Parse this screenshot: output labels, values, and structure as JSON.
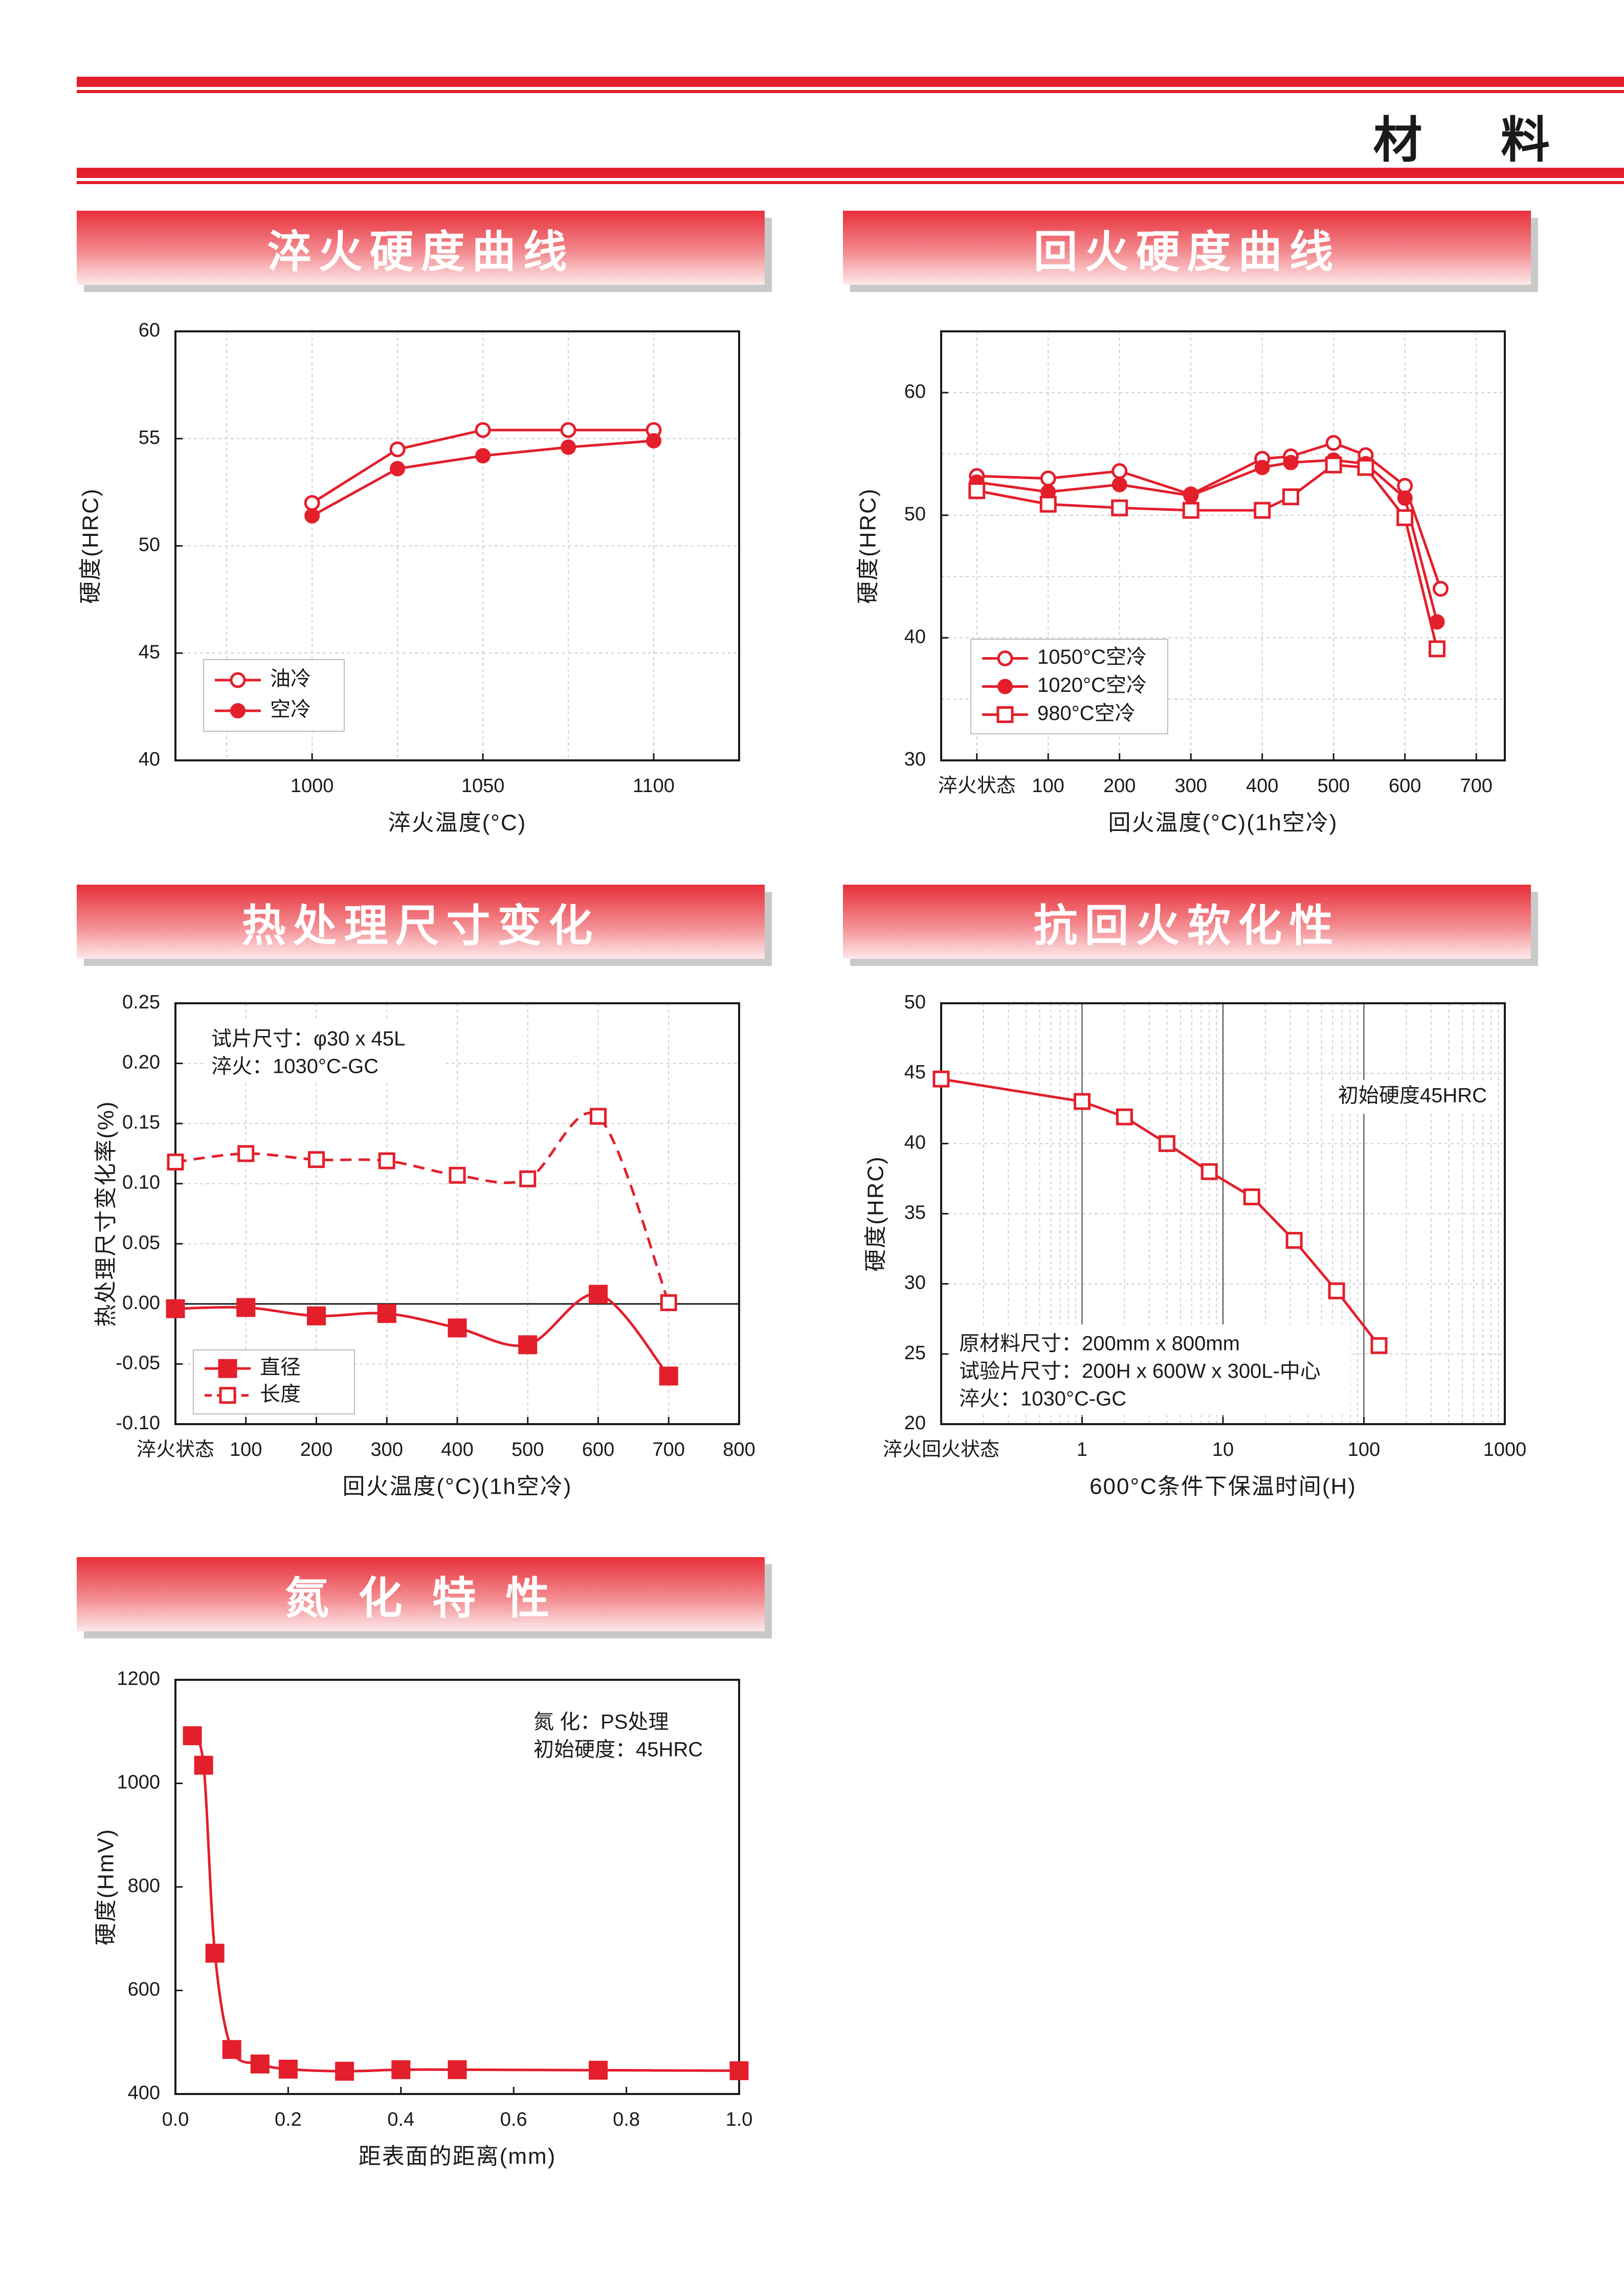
{
  "page": {
    "title": "材 料"
  },
  "sections": {
    "quench": "淬火硬度曲线",
    "temper": "回火硬度曲线",
    "dimension": "热处理尺寸变化",
    "softening": "抗回火软化性",
    "nitriding": "氮 化 特 性"
  },
  "colors": {
    "accent": "#e31f2b",
    "grid": "#cfcfcf",
    "axis": "#1a1a1a"
  },
  "chart_data": [
    {
      "id": "quench",
      "type": "line",
      "title": "淬火硬度曲线",
      "xlabel": "淬火温度(°C)",
      "ylabel": "硬度(HRC)",
      "xlim": [
        960,
        1125
      ],
      "ylim": [
        40,
        60
      ],
      "xticks": [
        1000,
        1050,
        1100
      ],
      "yticks": [
        40,
        45,
        50,
        55,
        60
      ],
      "xgrid": [
        975,
        1000,
        1025,
        1050,
        1075,
        1100,
        1125
      ],
      "ygrid": [
        45,
        50,
        55
      ],
      "legend": {
        "position": "bottom-left"
      },
      "series": [
        {
          "name": "油冷",
          "marker": "open-circle",
          "dash": false,
          "x": [
            1000,
            1025,
            1050,
            1075,
            1100
          ],
          "y": [
            52.0,
            54.5,
            55.4,
            55.4,
            55.4
          ]
        },
        {
          "name": "空冷",
          "marker": "filled-circle",
          "dash": false,
          "x": [
            1000,
            1025,
            1050,
            1075,
            1100
          ],
          "y": [
            51.4,
            53.6,
            54.2,
            54.6,
            54.9
          ]
        }
      ]
    },
    {
      "id": "temper",
      "type": "line",
      "title": "回火硬度曲线",
      "xlabel": "回火温度(°C)(1h空冷)",
      "ylabel": "硬度(HRC)",
      "xlim": [
        -50,
        740
      ],
      "ylim": [
        30,
        65
      ],
      "xticks": [
        0,
        100,
        200,
        300,
        400,
        500,
        600,
        700
      ],
      "xticklabels": [
        "淬火状态",
        "100",
        "200",
        "300",
        "400",
        "500",
        "600",
        "700"
      ],
      "yticks": [
        30,
        40,
        50,
        60
      ],
      "xgrid": [
        0,
        100,
        200,
        300,
        400,
        500,
        600,
        700
      ],
      "ygrid": [
        35,
        40,
        45,
        50,
        55,
        60
      ],
      "legend": {
        "position": "bottom-left"
      },
      "series": [
        {
          "name": "1050°C空冷",
          "marker": "open-circle",
          "dash": false,
          "x": [
            0,
            100,
            200,
            300,
            400,
            440,
            500,
            545,
            600,
            650
          ],
          "y": [
            53.2,
            53.0,
            53.6,
            51.7,
            54.6,
            54.8,
            55.9,
            54.9,
            52.4,
            44.0
          ]
        },
        {
          "name": "1020°C空冷",
          "marker": "filled-circle",
          "dash": false,
          "x": [
            0,
            100,
            200,
            300,
            400,
            440,
            500,
            545,
            600,
            645
          ],
          "y": [
            52.7,
            51.9,
            52.5,
            51.6,
            53.9,
            54.3,
            54.5,
            54.2,
            51.4,
            41.3
          ]
        },
        {
          "name": "980°C空冷",
          "marker": "open-square",
          "dash": false,
          "x": [
            0,
            100,
            200,
            300,
            400,
            440,
            500,
            545,
            600,
            645
          ],
          "y": [
            52.0,
            50.9,
            50.6,
            50.4,
            50.4,
            51.5,
            54.1,
            53.9,
            49.8,
            39.1
          ]
        }
      ]
    },
    {
      "id": "dimension",
      "type": "line",
      "title": "热处理尺寸变化",
      "xlabel": "回火温度(°C)(1h空冷)",
      "ylabel": "热处理尺寸变化率(%)",
      "xlim": [
        0,
        800
      ],
      "ylim": [
        -0.1,
        0.25
      ],
      "xticks": [
        0,
        100,
        200,
        300,
        400,
        500,
        600,
        700,
        800
      ],
      "xticklabels": [
        "淬火状态",
        "100",
        "200",
        "300",
        "400",
        "500",
        "600",
        "700",
        "800"
      ],
      "yticks": [
        -0.1,
        -0.05,
        0.0,
        0.05,
        0.1,
        0.15,
        0.2,
        0.25
      ],
      "yticklabels": [
        "-0.10",
        "-0.05",
        "0.00",
        "0.05",
        "0.10",
        "0.15",
        "0.20",
        "0.25"
      ],
      "xgrid": [
        100,
        200,
        300,
        400,
        500,
        600,
        700
      ],
      "ygrid": [
        -0.05,
        0.05,
        0.1,
        0.15,
        0.2
      ],
      "zero_line": 0,
      "notes": [
        "试片尺寸：φ30 x 45L",
        "淬火：1030°C-GC"
      ],
      "legend": {
        "position": "bottom-left"
      },
      "series": [
        {
          "name": "直径",
          "marker": "filled-square",
          "dash": false,
          "x": [
            0,
            100,
            200,
            300,
            400,
            500,
            600,
            700
          ],
          "y": [
            -0.004,
            -0.003,
            -0.01,
            -0.008,
            -0.02,
            -0.034,
            0.008,
            -0.06
          ]
        },
        {
          "name": "长度",
          "marker": "open-square",
          "dash": true,
          "x": [
            0,
            100,
            200,
            300,
            400,
            500,
            600,
            700
          ],
          "y": [
            0.118,
            0.125,
            0.12,
            0.119,
            0.107,
            0.104,
            0.156,
            0.001
          ]
        }
      ]
    },
    {
      "id": "softening",
      "type": "line",
      "title": "抗回火软化性",
      "xlabel": "600°C条件下保温时间(H)",
      "ylabel": "硬度(HRC)",
      "xscale": "log",
      "xlim_decades": [
        -1,
        3
      ],
      "ylim": [
        20,
        50
      ],
      "xticks": [
        0.1,
        1,
        10,
        100,
        1000
      ],
      "xticklabels": [
        "淬火回火状态",
        "1",
        "10",
        "100",
        "1000"
      ],
      "yticks": [
        20,
        25,
        30,
        35,
        40,
        45,
        50
      ],
      "notes": [
        "原材料尺寸：200mm x 800mm",
        "试验片尺寸：200H x 600W x 300L-中心",
        "淬火：1030°C-GC"
      ],
      "annotation": "初始硬度45HRC",
      "series": [
        {
          "name": "硬度",
          "marker": "open-square",
          "dash": false,
          "x": [
            0.1,
            1,
            2,
            4,
            8,
            16,
            32,
            64,
            128
          ],
          "y": [
            44.6,
            43.0,
            41.9,
            40.0,
            38.0,
            36.2,
            33.1,
            29.5,
            25.6
          ]
        }
      ]
    },
    {
      "id": "nitriding",
      "type": "line",
      "title": "氮化特性",
      "xlabel": "距表面的距离(mm)",
      "ylabel": "硬度(HmV)",
      "xlim": [
        0,
        1.0
      ],
      "ylim": [
        400,
        1200
      ],
      "xticks": [
        0,
        0.2,
        0.4,
        0.6,
        0.8,
        1.0
      ],
      "xticklabels": [
        "0.0",
        "0.2",
        "0.4",
        "0.6",
        "0.8",
        "1.0"
      ],
      "yticks": [
        400,
        600,
        800,
        1000,
        1200
      ],
      "notes": [
        "氮      化：PS处理",
        "初始硬度：45HRC"
      ],
      "series": [
        {
          "name": "硬度",
          "marker": "filled-square",
          "dash": false,
          "x": [
            0.03,
            0.05,
            0.07,
            0.1,
            0.15,
            0.2,
            0.3,
            0.4,
            0.5,
            0.75,
            1.0
          ],
          "y": [
            1092,
            1035,
            672,
            486,
            458,
            448,
            444,
            447,
            447,
            446,
            445
          ]
        }
      ]
    }
  ]
}
